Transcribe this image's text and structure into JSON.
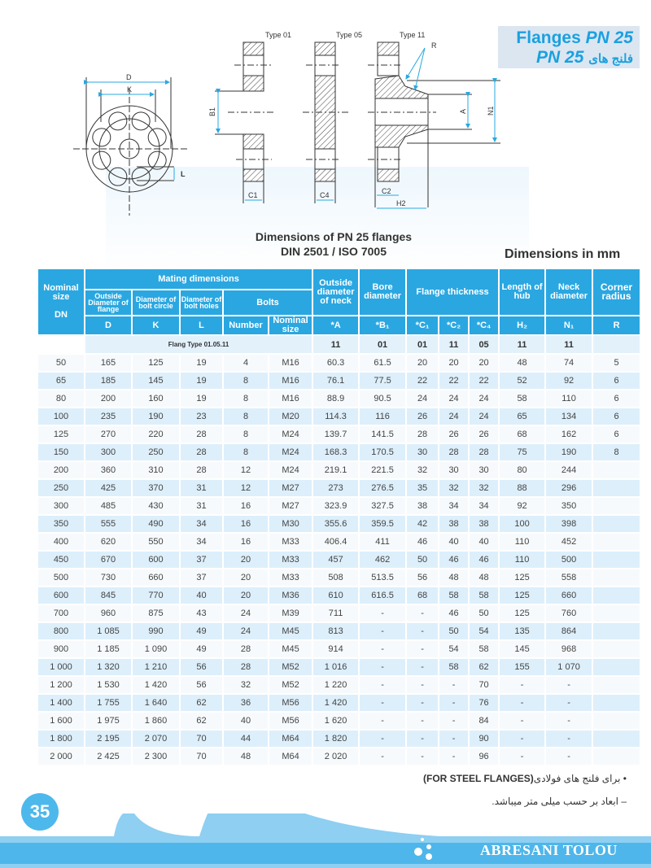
{
  "header": {
    "title_en": "Flanges",
    "title_pn": "PN 25",
    "title_fa_pn": "PN 25",
    "title_fa": "فلنج های",
    "accent_color": "#2aa7e1"
  },
  "drawing": {
    "labels": {
      "D": "D",
      "K": "K",
      "L": "L",
      "B1": "B1",
      "C1": "C1",
      "C4": "C4",
      "C2": "C2",
      "H2": "H2",
      "A": "A",
      "N1": "N1",
      "R": "R"
    },
    "types": [
      "Type 01",
      "Type 05",
      "Type 11"
    ]
  },
  "section": {
    "title_line1": "Dimensions of PN 25 flanges",
    "title_line2": "DIN 2501  /  ISO 7005",
    "units": "Dimensions in mm"
  },
  "table": {
    "headers": {
      "nominal_size": "Nominal size",
      "dn": "DN",
      "mating": "Mating dimensions",
      "outside_diameter_flange": "Outside Diameter of flange",
      "diameter_bolt_circle": "Diameter of bolt circle",
      "diameter_bolt_holes": "Diameter of bolt holes",
      "bolts": "Bolts",
      "outside_diameter_neck": "Outside diameter of neck",
      "bore_diameter": "Bore diameter",
      "flange_thickness": "Flange thickness",
      "length_hub": "Length of hub",
      "neck_diameter": "Neck diameter",
      "corner_radius": "Corner radius",
      "D": "D",
      "K": "K",
      "L": "L",
      "number": "Number",
      "nominal": "Nominal size",
      "A": "*A",
      "B1": "*B₁",
      "C1": "*C₁",
      "C2": "*C₂",
      "C4": "*C₄",
      "H2": "H₂",
      "N1": "N₁",
      "R": "R"
    },
    "flange_type_label": "Flang Type 01.05.11",
    "flange_types": [
      "11",
      "01",
      "01",
      "11",
      "05",
      "11",
      "11",
      ""
    ],
    "rows": [
      [
        "50",
        "165",
        "125",
        "19",
        "4",
        "M16",
        "60.3",
        "61.5",
        "20",
        "20",
        "20",
        "48",
        "74",
        "5"
      ],
      [
        "65",
        "185",
        "145",
        "19",
        "8",
        "M16",
        "76.1",
        "77.5",
        "22",
        "22",
        "22",
        "52",
        "92",
        "6"
      ],
      [
        "80",
        "200",
        "160",
        "19",
        "8",
        "M16",
        "88.9",
        "90.5",
        "24",
        "24",
        "24",
        "58",
        "110",
        "6"
      ],
      [
        "100",
        "235",
        "190",
        "23",
        "8",
        "M20",
        "114.3",
        "116",
        "26",
        "24",
        "24",
        "65",
        "134",
        "6"
      ],
      [
        "125",
        "270",
        "220",
        "28",
        "8",
        "M24",
        "139.7",
        "141.5",
        "28",
        "26",
        "26",
        "68",
        "162",
        "6"
      ],
      [
        "150",
        "300",
        "250",
        "28",
        "8",
        "M24",
        "168.3",
        "170.5",
        "30",
        "28",
        "28",
        "75",
        "190",
        "8"
      ],
      [
        "200",
        "360",
        "310",
        "28",
        "12",
        "M24",
        "219.1",
        "221.5",
        "32",
        "30",
        "30",
        "80",
        "244",
        ""
      ],
      [
        "250",
        "425",
        "370",
        "31",
        "12",
        "M27",
        "273",
        "276.5",
        "35",
        "32",
        "32",
        "88",
        "296",
        ""
      ],
      [
        "300",
        "485",
        "430",
        "31",
        "16",
        "M27",
        "323.9",
        "327.5",
        "38",
        "34",
        "34",
        "92",
        "350",
        ""
      ],
      [
        "350",
        "555",
        "490",
        "34",
        "16",
        "M30",
        "355.6",
        "359.5",
        "42",
        "38",
        "38",
        "100",
        "398",
        ""
      ],
      [
        "400",
        "620",
        "550",
        "34",
        "16",
        "M33",
        "406.4",
        "411",
        "46",
        "40",
        "40",
        "110",
        "452",
        ""
      ],
      [
        "450",
        "670",
        "600",
        "37",
        "20",
        "M33",
        "457",
        "462",
        "50",
        "46",
        "46",
        "110",
        "500",
        ""
      ],
      [
        "500",
        "730",
        "660",
        "37",
        "20",
        "M33",
        "508",
        "513.5",
        "56",
        "48",
        "48",
        "125",
        "558",
        ""
      ],
      [
        "600",
        "845",
        "770",
        "40",
        "20",
        "M36",
        "610",
        "616.5",
        "68",
        "58",
        "58",
        "125",
        "660",
        ""
      ],
      [
        "700",
        "960",
        "875",
        "43",
        "24",
        "M39",
        "711",
        "-",
        "-",
        "46",
        "50",
        "125",
        "760",
        ""
      ],
      [
        "800",
        "1 085",
        "990",
        "49",
        "24",
        "M45",
        "813",
        "-",
        "-",
        "50",
        "54",
        "135",
        "864",
        ""
      ],
      [
        "900",
        "1 185",
        "1 090",
        "49",
        "28",
        "M45",
        "914",
        "-",
        "-",
        "54",
        "58",
        "145",
        "968",
        ""
      ],
      [
        "1 000",
        "1 320",
        "1 210",
        "56",
        "28",
        "M52",
        "1 016",
        "-",
        "-",
        "58",
        "62",
        "155",
        "1 070",
        ""
      ],
      [
        "1 200",
        "1 530",
        "1 420",
        "56",
        "32",
        "M52",
        "1 220",
        "-",
        "-",
        "-",
        "70",
        "-",
        "-",
        ""
      ],
      [
        "1 400",
        "1 755",
        "1 640",
        "62",
        "36",
        "M56",
        "1 420",
        "-",
        "-",
        "-",
        "76",
        "-",
        "-",
        ""
      ],
      [
        "1 600",
        "1 975",
        "1 860",
        "62",
        "40",
        "M56",
        "1 620",
        "-",
        "-",
        "-",
        "84",
        "-",
        "-",
        ""
      ],
      [
        "1 800",
        "2 195",
        "2 070",
        "70",
        "44",
        "M64",
        "1 820",
        "-",
        "-",
        "-",
        "90",
        "-",
        "-",
        ""
      ],
      [
        "2 000",
        "2 425",
        "2 300",
        "70",
        "48",
        "M64",
        "2 020",
        "-",
        "-",
        "-",
        "96",
        "-",
        "-",
        ""
      ]
    ]
  },
  "notes": {
    "note1_fa": "• برای فلنج های فولادی",
    "note1_en": "(FOR STEEL FLANGES)",
    "note2_fa": "– ابعاد بر حسب میلی متر میباشد."
  },
  "footer": {
    "page_number": "35",
    "brand": "ABRESANI TOLOU"
  }
}
